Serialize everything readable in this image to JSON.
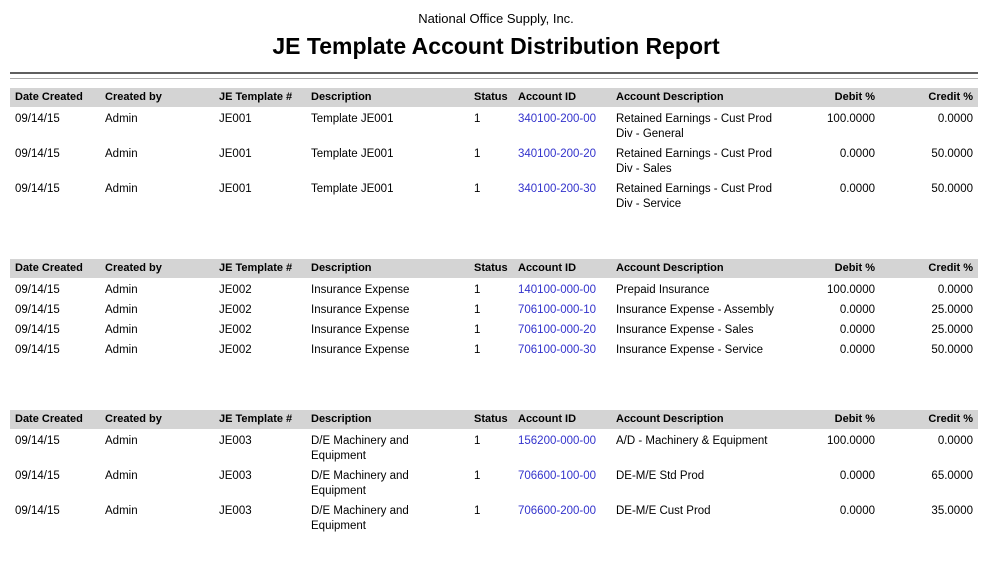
{
  "header": {
    "company": "National Office Supply, Inc.",
    "title": "JE Template Account Distribution Report"
  },
  "columns": [
    "Date Created",
    "Created by",
    "JE Template #",
    "Description",
    "Status",
    "Account ID",
    "Account Description",
    "Debit %",
    "Credit %"
  ],
  "colors": {
    "account_link": "#3333cc",
    "header_band": "#d4d4d4",
    "rule_dark": "#5f5f5f",
    "rule_light": "#a9a9a9"
  },
  "sections": [
    {
      "rows": [
        {
          "date": "09/14/15",
          "created_by": "Admin",
          "template": "JE001",
          "description": "Template JE001",
          "status": "1",
          "account_id": "340100-200-00",
          "account_description": "Retained Earnings - Cust Prod Div - General",
          "debit": "100.0000",
          "credit": "0.0000"
        },
        {
          "date": "09/14/15",
          "created_by": "Admin",
          "template": "JE001",
          "description": "Template JE001",
          "status": "1",
          "account_id": "340100-200-20",
          "account_description": "Retained Earnings - Cust Prod Div - Sales",
          "debit": "0.0000",
          "credit": "50.0000"
        },
        {
          "date": "09/14/15",
          "created_by": "Admin",
          "template": "JE001",
          "description": "Template JE001",
          "status": "1",
          "account_id": "340100-200-30",
          "account_description": "Retained Earnings - Cust Prod Div - Service",
          "debit": "0.0000",
          "credit": "50.0000"
        }
      ]
    },
    {
      "rows": [
        {
          "date": "09/14/15",
          "created_by": "Admin",
          "template": "JE002",
          "description": "Insurance Expense",
          "status": "1",
          "account_id": "140100-000-00",
          "account_description": "Prepaid Insurance",
          "debit": "100.0000",
          "credit": "0.0000"
        },
        {
          "date": "09/14/15",
          "created_by": "Admin",
          "template": "JE002",
          "description": "Insurance Expense",
          "status": "1",
          "account_id": "706100-000-10",
          "account_description": "Insurance Expense - Assembly",
          "debit": "0.0000",
          "credit": "25.0000"
        },
        {
          "date": "09/14/15",
          "created_by": "Admin",
          "template": "JE002",
          "description": "Insurance Expense",
          "status": "1",
          "account_id": "706100-000-20",
          "account_description": "Insurance Expense - Sales",
          "debit": "0.0000",
          "credit": "25.0000"
        },
        {
          "date": "09/14/15",
          "created_by": "Admin",
          "template": "JE002",
          "description": "Insurance Expense",
          "status": "1",
          "account_id": "706100-000-30",
          "account_description": "Insurance Expense - Service",
          "debit": "0.0000",
          "credit": "50.0000"
        }
      ]
    },
    {
      "rows": [
        {
          "date": "09/14/15",
          "created_by": "Admin",
          "template": "JE003",
          "description": "D/E Machinery and Equipment",
          "status": "1",
          "account_id": "156200-000-00",
          "account_description": "A/D - Machinery & Equipment",
          "debit": "100.0000",
          "credit": "0.0000"
        },
        {
          "date": "09/14/15",
          "created_by": "Admin",
          "template": "JE003",
          "description": "D/E Machinery and Equipment",
          "status": "1",
          "account_id": "706600-100-00",
          "account_description": "DE-M/E Std Prod",
          "debit": "0.0000",
          "credit": "65.0000"
        },
        {
          "date": "09/14/15",
          "created_by": "Admin",
          "template": "JE003",
          "description": "D/E Machinery and Equipment",
          "status": "1",
          "account_id": "706600-200-00",
          "account_description": "DE-M/E Cust Prod",
          "debit": "0.0000",
          "credit": "35.0000"
        }
      ]
    }
  ]
}
